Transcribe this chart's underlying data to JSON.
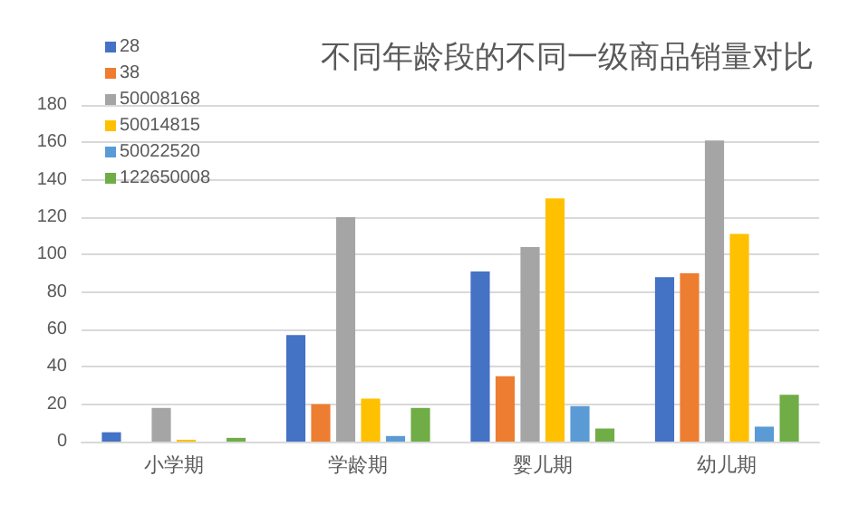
{
  "chart_data": {
    "type": "bar",
    "title": "不同年龄段的不同一级商品销量对比",
    "categories": [
      "小学期",
      "学龄期",
      "婴儿期",
      "幼儿期"
    ],
    "series": [
      {
        "name": "28",
        "color": "#4472c4",
        "values": [
          5,
          57,
          91,
          88
        ]
      },
      {
        "name": "38",
        "color": "#ed7d31",
        "values": [
          0,
          20,
          35,
          90
        ]
      },
      {
        "name": "50008168",
        "color": "#a5a5a5",
        "values": [
          18,
          120,
          104,
          161
        ]
      },
      {
        "name": "50014815",
        "color": "#ffc000",
        "values": [
          1,
          23,
          130,
          111
        ]
      },
      {
        "name": "50022520",
        "color": "#5b9bd5",
        "values": [
          0,
          3,
          19,
          8
        ]
      },
      {
        "name": "122650008",
        "color": "#70ad47",
        "values": [
          2,
          18,
          7,
          25
        ]
      }
    ],
    "ylim": [
      0,
      180
    ],
    "yticks": [
      0,
      20,
      40,
      60,
      80,
      100,
      120,
      140,
      160,
      180
    ],
    "grid": "y",
    "legend": "top left"
  }
}
